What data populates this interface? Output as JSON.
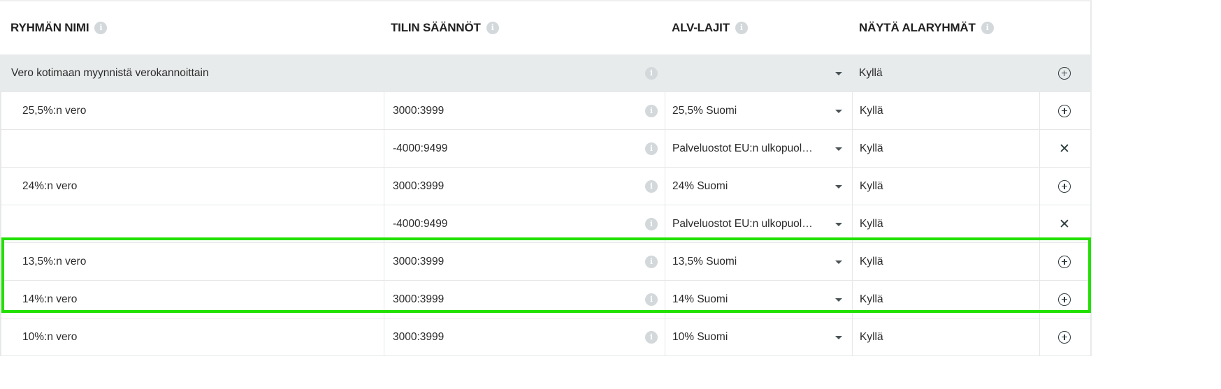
{
  "header": {
    "columns": [
      {
        "label": "RYHMÄN NIMI",
        "icon": "info-icon"
      },
      {
        "label": "TILIN SÄÄNNÖT",
        "icon": "info-icon"
      },
      {
        "label": "ALV-LAJIT",
        "icon": "info-icon"
      },
      {
        "label": "NÄYTÄ ALARYHMÄT",
        "icon": "info-icon"
      }
    ]
  },
  "rows": [
    {
      "name": "Vero kotimaan myynnistä verokannoittain",
      "rule": "",
      "vat": "",
      "show": "Kyllä",
      "action": "add-circle-icon",
      "group": true
    },
    {
      "name": "25,5%:n vero",
      "rule": "3000:3999",
      "vat": "25,5% Suomi",
      "show": "Kyllä",
      "action": "add-circle-icon"
    },
    {
      "name": "",
      "rule": "-4000:9499",
      "vat": "Palveluostot EU:n ulkopuol…",
      "show": "Kyllä",
      "action": "close-icon"
    },
    {
      "name": "24%:n vero",
      "rule": "3000:3999",
      "vat": "24% Suomi",
      "show": "Kyllä",
      "action": "add-circle-icon"
    },
    {
      "name": "",
      "rule": "-4000:9499",
      "vat": "Palveluostot EU:n ulkopuol…",
      "show": "Kyllä",
      "action": "close-icon"
    },
    {
      "name": "13,5%:n vero",
      "rule": "3000:3999",
      "vat": "13,5% Suomi",
      "show": "Kyllä",
      "action": "add-circle-icon",
      "highlighted": true
    },
    {
      "name": "14%:n vero",
      "rule": "3000:3999",
      "vat": "14% Suomi",
      "show": "Kyllä",
      "action": "add-circle-icon",
      "highlighted": true
    },
    {
      "name": "10%:n vero",
      "rule": "3000:3999",
      "vat": "10% Suomi",
      "show": "Kyllä",
      "action": "add-circle-icon"
    }
  ],
  "colors": {
    "highlight": "#22e000",
    "group_bg": "#e8ebec",
    "info_icon": "#d3d8da"
  }
}
